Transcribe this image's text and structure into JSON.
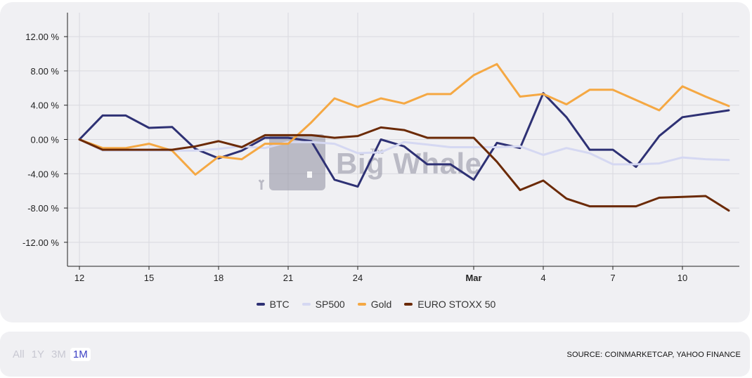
{
  "chart_data": {
    "type": "line",
    "ylim": [
      -14.8,
      14.8
    ],
    "yticks": [
      12,
      8,
      4,
      0,
      -4,
      -8,
      -12
    ],
    "ytick_labels": [
      "12.00 %",
      "8.00 %",
      "4.00 %",
      "0.00 %",
      "-4.00 %",
      "-8.00 %",
      "-12.00 %"
    ],
    "xtick_labels": [
      {
        "day": 0,
        "label": "12",
        "bold": false
      },
      {
        "day": 3,
        "label": "15",
        "bold": false
      },
      {
        "day": 6,
        "label": "18",
        "bold": false
      },
      {
        "day": 9,
        "label": "21",
        "bold": false
      },
      {
        "day": 12,
        "label": "24",
        "bold": false
      },
      {
        "day": 17,
        "label": "Mar",
        "bold": true
      },
      {
        "day": 20,
        "label": "4",
        "bold": false
      },
      {
        "day": 23,
        "label": "7",
        "bold": false
      },
      {
        "day": 26,
        "label": "10",
        "bold": false
      }
    ],
    "x": [
      0,
      1,
      2,
      3,
      4,
      5,
      6,
      7,
      8,
      9,
      10,
      11,
      12,
      13,
      14,
      15,
      16,
      17,
      18,
      19,
      20,
      21,
      22,
      23,
      24,
      25,
      26,
      27,
      28
    ],
    "grid": true,
    "legend_position": "bottom",
    "series": [
      {
        "name": "BTC",
        "color": "#2e3174",
        "values": [
          0,
          2.8,
          2.8,
          1.35,
          1.45,
          -1.1,
          -2.2,
          -1.3,
          0.2,
          0.2,
          -0.2,
          -4.7,
          -5.5,
          0,
          -0.8,
          -2.9,
          -2.9,
          -4.7,
          -0.4,
          -1.0,
          5.4,
          2.6,
          -1.2,
          -1.2,
          -3.2,
          0.4,
          2.6,
          3.0,
          3.4
        ]
      },
      {
        "name": "SP500",
        "color": "#d5d8f2",
        "values": [
          0,
          -1.3,
          -1.3,
          -1.3,
          -1.3,
          -1.3,
          -1.1,
          -0.8,
          -1.0,
          -0.3,
          -0.3,
          -0.5,
          -1.6,
          -1.5,
          -0.3,
          -0.6,
          -0.9,
          -0.9,
          -0.9,
          -0.8,
          -1.8,
          -1.0,
          -1.6,
          -2.9,
          -2.9,
          -2.8,
          -2.1,
          -2.3,
          -2.4
        ]
      },
      {
        "name": "Gold",
        "color": "#f5a843",
        "values": [
          0,
          -1.0,
          -1.0,
          -0.5,
          -1.3,
          -4.1,
          -2.0,
          -2.3,
          -0.5,
          -0.5,
          2.0,
          4.8,
          3.8,
          4.8,
          4.2,
          5.3,
          5.3,
          7.5,
          8.8,
          5.0,
          5.3,
          4.1,
          5.8,
          5.8,
          4.6,
          3.4,
          6.2,
          5.0,
          3.9
        ]
      },
      {
        "name": "EURO STOXX 50",
        "color": "#6b2a06",
        "values": [
          0,
          -1.2,
          -1.2,
          -1.2,
          -1.2,
          -0.8,
          -0.2,
          -0.9,
          0.5,
          0.5,
          0.5,
          0.2,
          0.4,
          1.4,
          1.1,
          0.2,
          0.2,
          0.2,
          -2.6,
          -5.9,
          -4.8,
          -6.9,
          -7.8,
          -7.8,
          -7.8,
          -6.8,
          -6.7,
          -6.6,
          -8.3
        ]
      }
    ]
  },
  "watermark": {
    "name_line1": "The",
    "name_line2": "Big Whale"
  },
  "range_buttons": [
    "All",
    "1Y",
    "3M",
    "1M"
  ],
  "active_range": "1M",
  "source_text": "SOURCE: COINMARKETCAP, YAHOO FINANCE"
}
